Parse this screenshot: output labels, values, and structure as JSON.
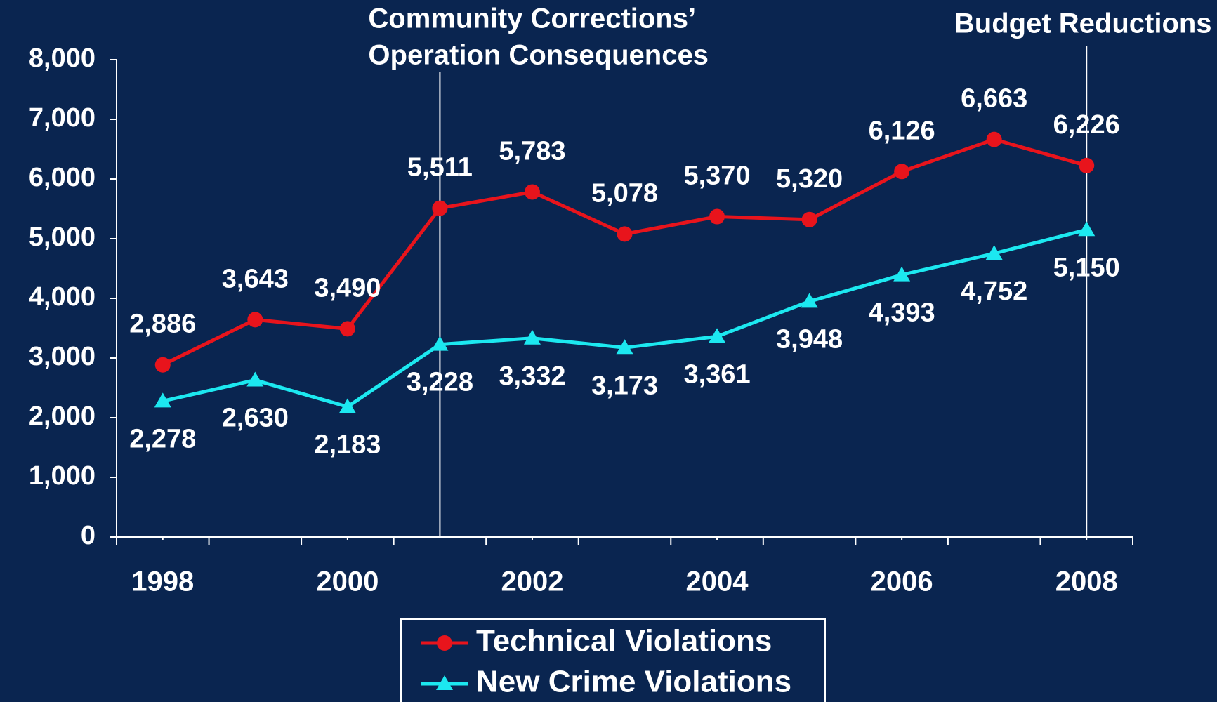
{
  "chart_data": {
    "type": "line",
    "x": [
      1998,
      1999,
      2000,
      2001,
      2002,
      2003,
      2004,
      2005,
      2006,
      2007,
      2008
    ],
    "xlim": [
      1997.5,
      2008.5
    ],
    "xticks": [
      1998,
      2000,
      2002,
      2004,
      2006,
      2008
    ],
    "ylim": [
      0,
      8000
    ],
    "yticks": [
      {
        "value": 0,
        "label": "0"
      },
      {
        "value": 1000,
        "label": "1,000"
      },
      {
        "value": 2000,
        "label": "2,000"
      },
      {
        "value": 3000,
        "label": "3,000"
      },
      {
        "value": 4000,
        "label": "4,000"
      },
      {
        "value": 5000,
        "label": "5,000"
      },
      {
        "value": 6000,
        "label": "6,000"
      },
      {
        "value": 7000,
        "label": "7,000"
      },
      {
        "value": 8000,
        "label": "8,000"
      }
    ],
    "series": [
      {
        "name": "Technical Violations",
        "color": "#e8141c",
        "marker": "circle",
        "label_position": "above",
        "values": [
          2886,
          3643,
          3490,
          5511,
          5783,
          5078,
          5370,
          5320,
          6126,
          6663,
          6226
        ],
        "value_labels": [
          "2,886",
          "3,643",
          "3,490",
          "5,511",
          "5,783",
          "5,078",
          "5,370",
          "5,320",
          "6,126",
          "6,663",
          "6,226"
        ]
      },
      {
        "name": "New Crime Violations",
        "color": "#1ce8f0",
        "marker": "triangle",
        "label_position": "below",
        "values": [
          2278,
          2630,
          2183,
          3228,
          3332,
          3173,
          3361,
          3948,
          4393,
          4752,
          5150
        ],
        "value_labels": [
          "2,278",
          "2,630",
          "2,183",
          "3,228",
          "3,332",
          "3,173",
          "3,361",
          "3,948",
          "4,393",
          "4,752",
          "5,150"
        ]
      }
    ],
    "annotations": [
      {
        "x": 2001,
        "lines": [
          "Community Corrections’",
          "Operation Consequences"
        ],
        "align": "start"
      },
      {
        "x": 2008,
        "lines": [
          "Budget Reductions"
        ],
        "align": "middle"
      }
    ],
    "legend": "bottom"
  }
}
